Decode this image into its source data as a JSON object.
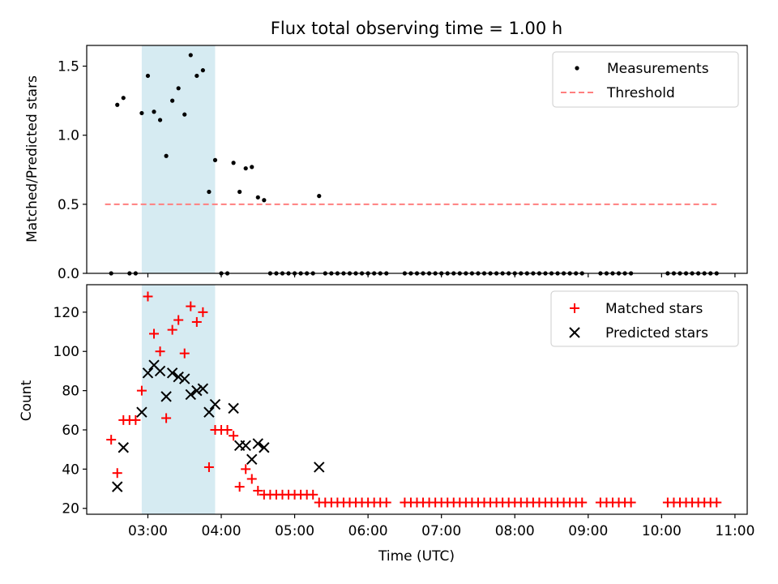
{
  "chart_data": [
    {
      "type": "scatter",
      "title": "Flux total observing time = 1.00 h",
      "xlabel": "",
      "ylabel": "Matched/Predicted stars",
      "ylim": [
        0,
        1.65
      ],
      "yticks": [
        0.0,
        0.5,
        1.0,
        1.5
      ],
      "ytick_labels": [
        "0.0",
        "0.5",
        "1.0",
        "1.5"
      ],
      "xlim": [
        "02:10",
        "11:10"
      ],
      "xticks": [
        "03:00",
        "04:00",
        "05:00",
        "06:00",
        "07:00",
        "08:00",
        "09:00",
        "10:00",
        "11:00"
      ],
      "highlight_span": [
        "02:55",
        "03:55"
      ],
      "legend_position": "top-right",
      "series": [
        {
          "name": "Measurements",
          "color": "#000000",
          "marker": "dot",
          "points": [
            [
              "02:30",
              0
            ],
            [
              "02:35",
              1.22
            ],
            [
              "02:40",
              1.27
            ],
            [
              "02:45",
              0
            ],
            [
              "02:50",
              0
            ],
            [
              "02:55",
              1.16
            ],
            [
              "03:00",
              1.43
            ],
            [
              "03:05",
              1.17
            ],
            [
              "03:10",
              1.11
            ],
            [
              "03:15",
              0.85
            ],
            [
              "03:20",
              1.25
            ],
            [
              "03:25",
              1.34
            ],
            [
              "03:30",
              1.15
            ],
            [
              "03:35",
              1.58
            ],
            [
              "03:40",
              1.43
            ],
            [
              "03:45",
              1.47
            ],
            [
              "03:50",
              0.59
            ],
            [
              "03:55",
              0.82
            ],
            [
              "04:00",
              0
            ],
            [
              "04:05",
              0
            ],
            [
              "04:10",
              0.8
            ],
            [
              "04:15",
              0.59
            ],
            [
              "04:20",
              0.76
            ],
            [
              "04:25",
              0.77
            ],
            [
              "04:30",
              0.55
            ],
            [
              "04:35",
              0.53
            ],
            [
              "04:40",
              0
            ],
            [
              "04:45",
              0
            ],
            [
              "04:50",
              0
            ],
            [
              "04:55",
              0
            ],
            [
              "05:00",
              0
            ],
            [
              "05:05",
              0
            ],
            [
              "05:10",
              0
            ],
            [
              "05:15",
              0
            ],
            [
              "05:20",
              0.56
            ],
            [
              "05:25",
              0
            ],
            [
              "05:30",
              0
            ],
            [
              "05:35",
              0
            ],
            [
              "05:40",
              0
            ],
            [
              "05:45",
              0
            ],
            [
              "05:50",
              0
            ],
            [
              "05:55",
              0
            ],
            [
              "06:00",
              0
            ],
            [
              "06:05",
              0
            ],
            [
              "06:10",
              0
            ],
            [
              "06:15",
              0
            ],
            [
              "06:30",
              0
            ],
            [
              "06:35",
              0
            ],
            [
              "06:40",
              0
            ],
            [
              "06:45",
              0
            ],
            [
              "06:50",
              0
            ],
            [
              "06:55",
              0
            ],
            [
              "07:00",
              0
            ],
            [
              "07:05",
              0
            ],
            [
              "07:10",
              0
            ],
            [
              "07:15",
              0
            ],
            [
              "07:20",
              0
            ],
            [
              "07:25",
              0
            ],
            [
              "07:30",
              0
            ],
            [
              "07:35",
              0
            ],
            [
              "07:40",
              0
            ],
            [
              "07:45",
              0
            ],
            [
              "07:50",
              0
            ],
            [
              "07:55",
              0
            ],
            [
              "08:00",
              0
            ],
            [
              "08:05",
              0
            ],
            [
              "08:10",
              0
            ],
            [
              "08:15",
              0
            ],
            [
              "08:20",
              0
            ],
            [
              "08:25",
              0
            ],
            [
              "08:30",
              0
            ],
            [
              "08:35",
              0
            ],
            [
              "08:40",
              0
            ],
            [
              "08:45",
              0
            ],
            [
              "08:50",
              0
            ],
            [
              "08:55",
              0
            ],
            [
              "09:10",
              0
            ],
            [
              "09:15",
              0
            ],
            [
              "09:20",
              0
            ],
            [
              "09:25",
              0
            ],
            [
              "09:30",
              0
            ],
            [
              "09:35",
              0
            ],
            [
              "10:05",
              0
            ],
            [
              "10:10",
              0
            ],
            [
              "10:15",
              0
            ],
            [
              "10:20",
              0
            ],
            [
              "10:25",
              0
            ],
            [
              "10:30",
              0
            ],
            [
              "10:35",
              0
            ],
            [
              "10:40",
              0
            ],
            [
              "10:45",
              0
            ]
          ]
        },
        {
          "name": "Threshold",
          "color": "#ff7f7f",
          "marker": "dashed-line",
          "points": [
            [
              "02:25",
              0.5
            ],
            [
              "10:45",
              0.5
            ]
          ]
        }
      ]
    },
    {
      "type": "scatter",
      "title": "",
      "xlabel": "Time (UTC)",
      "ylabel": "Count",
      "ylim": [
        17,
        134
      ],
      "yticks": [
        20,
        40,
        60,
        80,
        100,
        120
      ],
      "ytick_labels": [
        "20",
        "40",
        "60",
        "80",
        "100",
        "120"
      ],
      "xlim": [
        "02:10",
        "11:10"
      ],
      "xticks": [
        "03:00",
        "04:00",
        "05:00",
        "06:00",
        "07:00",
        "08:00",
        "09:00",
        "10:00",
        "11:00"
      ],
      "xtick_labels": [
        "03:00",
        "04:00",
        "05:00",
        "06:00",
        "07:00",
        "08:00",
        "09:00",
        "10:00",
        "11:00"
      ],
      "highlight_span": [
        "02:55",
        "03:55"
      ],
      "legend_position": "top-right",
      "series": [
        {
          "name": "Matched stars",
          "color": "#ff0000",
          "marker": "plus",
          "points": [
            [
              "02:30",
              55
            ],
            [
              "02:35",
              38
            ],
            [
              "02:40",
              65
            ],
            [
              "02:45",
              65
            ],
            [
              "02:50",
              65
            ],
            [
              "02:55",
              80
            ],
            [
              "03:00",
              128
            ],
            [
              "03:05",
              109
            ],
            [
              "03:10",
              100
            ],
            [
              "03:15",
              66
            ],
            [
              "03:20",
              111
            ],
            [
              "03:25",
              116
            ],
            [
              "03:30",
              99
            ],
            [
              "03:35",
              123
            ],
            [
              "03:40",
              115
            ],
            [
              "03:45",
              120
            ],
            [
              "03:50",
              41
            ],
            [
              "03:55",
              60
            ],
            [
              "04:00",
              60
            ],
            [
              "04:05",
              60
            ],
            [
              "04:10",
              57
            ],
            [
              "04:15",
              31
            ],
            [
              "04:20",
              40
            ],
            [
              "04:25",
              35
            ],
            [
              "04:30",
              29
            ],
            [
              "04:35",
              27
            ],
            [
              "04:40",
              27
            ],
            [
              "04:45",
              27
            ],
            [
              "04:50",
              27
            ],
            [
              "04:55",
              27
            ],
            [
              "05:00",
              27
            ],
            [
              "05:05",
              27
            ],
            [
              "05:10",
              27
            ],
            [
              "05:15",
              27
            ],
            [
              "05:20",
              23
            ],
            [
              "05:25",
              23
            ],
            [
              "05:30",
              23
            ],
            [
              "05:35",
              23
            ],
            [
              "05:40",
              23
            ],
            [
              "05:45",
              23
            ],
            [
              "05:50",
              23
            ],
            [
              "05:55",
              23
            ],
            [
              "06:00",
              23
            ],
            [
              "06:05",
              23
            ],
            [
              "06:10",
              23
            ],
            [
              "06:15",
              23
            ],
            [
              "06:30",
              23
            ],
            [
              "06:35",
              23
            ],
            [
              "06:40",
              23
            ],
            [
              "06:45",
              23
            ],
            [
              "06:50",
              23
            ],
            [
              "06:55",
              23
            ],
            [
              "07:00",
              23
            ],
            [
              "07:05",
              23
            ],
            [
              "07:10",
              23
            ],
            [
              "07:15",
              23
            ],
            [
              "07:20",
              23
            ],
            [
              "07:25",
              23
            ],
            [
              "07:30",
              23
            ],
            [
              "07:35",
              23
            ],
            [
              "07:40",
              23
            ],
            [
              "07:45",
              23
            ],
            [
              "07:50",
              23
            ],
            [
              "07:55",
              23
            ],
            [
              "08:00",
              23
            ],
            [
              "08:05",
              23
            ],
            [
              "08:10",
              23
            ],
            [
              "08:15",
              23
            ],
            [
              "08:20",
              23
            ],
            [
              "08:25",
              23
            ],
            [
              "08:30",
              23
            ],
            [
              "08:35",
              23
            ],
            [
              "08:40",
              23
            ],
            [
              "08:45",
              23
            ],
            [
              "08:50",
              23
            ],
            [
              "08:55",
              23
            ],
            [
              "09:10",
              23
            ],
            [
              "09:15",
              23
            ],
            [
              "09:20",
              23
            ],
            [
              "09:25",
              23
            ],
            [
              "09:30",
              23
            ],
            [
              "09:35",
              23
            ],
            [
              "10:05",
              23
            ],
            [
              "10:10",
              23
            ],
            [
              "10:15",
              23
            ],
            [
              "10:20",
              23
            ],
            [
              "10:25",
              23
            ],
            [
              "10:30",
              23
            ],
            [
              "10:35",
              23
            ],
            [
              "10:40",
              23
            ],
            [
              "10:45",
              23
            ]
          ]
        },
        {
          "name": "Predicted stars",
          "color": "#000000",
          "marker": "x",
          "points": [
            [
              "02:35",
              31
            ],
            [
              "02:40",
              51
            ],
            [
              "02:55",
              69
            ],
            [
              "03:00",
              89
            ],
            [
              "03:05",
              93
            ],
            [
              "03:10",
              90
            ],
            [
              "03:15",
              77
            ],
            [
              "03:20",
              89
            ],
            [
              "03:25",
              87
            ],
            [
              "03:30",
              86
            ],
            [
              "03:35",
              78
            ],
            [
              "03:40",
              80
            ],
            [
              "03:45",
              81
            ],
            [
              "03:50",
              69
            ],
            [
              "03:55",
              73
            ],
            [
              "04:10",
              71
            ],
            [
              "04:15",
              52
            ],
            [
              "04:20",
              52
            ],
            [
              "04:25",
              45
            ],
            [
              "04:30",
              53
            ],
            [
              "04:35",
              51
            ],
            [
              "05:20",
              41
            ]
          ]
        }
      ]
    }
  ]
}
